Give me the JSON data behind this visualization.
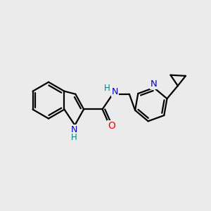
{
  "background_color": "#ebebeb",
  "bond_color": "#000000",
  "N_color": "#0000cd",
  "O_color": "#ff0000",
  "NH_color": "#008080",
  "line_width": 1.6,
  "figsize": [
    3.0,
    3.0
  ],
  "dpi": 100,
  "xlim": [
    0,
    10
  ],
  "ylim": [
    0,
    10
  ]
}
